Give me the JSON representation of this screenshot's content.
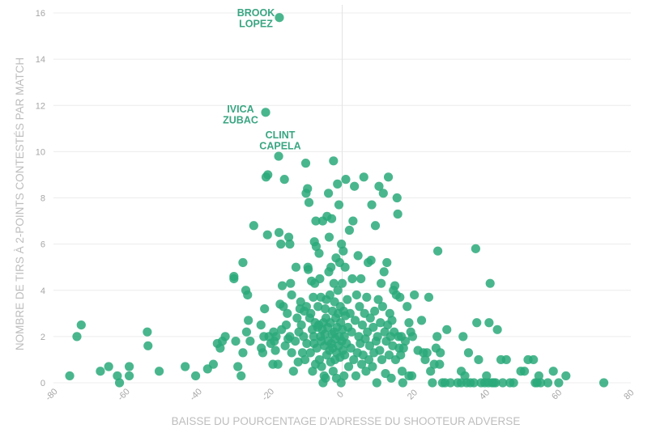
{
  "chart_data": {
    "type": "scatter",
    "xlabel": "BAISSE DU POURCENTAGE D'ADRESSE DU SHOOTEUR ADVERSE",
    "ylabel": "NOMBRE DE TIRS À 2-POINTS CONTESTÉS PAR MATCH",
    "xlim": [
      -80,
      80
    ],
    "ylim": [
      0,
      16
    ],
    "xticks": [
      -80,
      -60,
      -40,
      -20,
      0,
      20,
      40,
      60,
      80
    ],
    "yticks": [
      0,
      2,
      4,
      6,
      8,
      10,
      12,
      14,
      16
    ],
    "grid": true,
    "color": "#2aa97a",
    "annotations": [
      {
        "lines": [
          "BROOK",
          "LOPEZ"
        ],
        "x": -17.4,
        "y": 15.8
      },
      {
        "lines": [
          "IVICA",
          "ZUBAC"
        ],
        "x": -21.2,
        "y": 11.7
      },
      {
        "lines": [
          "CLINT",
          "CAPELA"
        ],
        "x": -17.6,
        "y": 9.8
      }
    ],
    "points": [
      [
        -75.5,
        0.3
      ],
      [
        -73.5,
        2.0
      ],
      [
        -72.3,
        2.5
      ],
      [
        -67.0,
        0.5
      ],
      [
        -64.7,
        0.7
      ],
      [
        -62.3,
        0.3
      ],
      [
        -61.7,
        0.0
      ],
      [
        -59.0,
        0.7
      ],
      [
        -59.0,
        0.3
      ],
      [
        -54.0,
        2.2
      ],
      [
        -53.8,
        1.6
      ],
      [
        -50.7,
        0.5
      ],
      [
        -43.5,
        0.7
      ],
      [
        -40.6,
        0.3
      ],
      [
        -37.3,
        0.6
      ],
      [
        -35.7,
        0.8
      ],
      [
        -34.6,
        1.7
      ],
      [
        -33.8,
        1.5
      ],
      [
        -33.2,
        1.8
      ],
      [
        -32.4,
        2.0
      ],
      [
        -30.0,
        4.6
      ],
      [
        -30.0,
        4.5
      ],
      [
        -29.5,
        1.8
      ],
      [
        -28.9,
        0.7
      ],
      [
        -28.0,
        0.3
      ],
      [
        -27.5,
        1.3
      ],
      [
        -27.5,
        5.2
      ],
      [
        -26.7,
        4.0
      ],
      [
        -26.5,
        2.2
      ],
      [
        -26.2,
        3.8
      ],
      [
        -26.0,
        2.7
      ],
      [
        -25.5,
        1.8
      ],
      [
        -24.5,
        6.8
      ],
      [
        -22.5,
        2.5
      ],
      [
        -22.4,
        1.5
      ],
      [
        -22.0,
        1.3
      ],
      [
        -21.7,
        2.0
      ],
      [
        -21.5,
        3.2
      ],
      [
        -21.2,
        11.7
      ],
      [
        -21.1,
        8.9
      ],
      [
        -20.7,
        6.4
      ],
      [
        -20.6,
        9.0
      ],
      [
        -20.3,
        2.0
      ],
      [
        -19.8,
        1.7
      ],
      [
        -19.2,
        0.8
      ],
      [
        -19.0,
        2.2
      ],
      [
        -18.8,
        1.8
      ],
      [
        -18.5,
        1.4
      ],
      [
        -18.3,
        2.0
      ],
      [
        -17.8,
        0.8
      ],
      [
        -17.6,
        9.8
      ],
      [
        -17.5,
        6.5
      ],
      [
        -17.4,
        15.8
      ],
      [
        -17.2,
        3.4
      ],
      [
        -17.0,
        6.0
      ],
      [
        -16.8,
        2.3
      ],
      [
        -16.6,
        4.2
      ],
      [
        -16.3,
        3.3
      ],
      [
        -16.0,
        8.8
      ],
      [
        -15.8,
        1.6
      ],
      [
        -15.5,
        2.5
      ],
      [
        -15.2,
        3.0
      ],
      [
        -15.0,
        1.9
      ],
      [
        -14.8,
        6.3
      ],
      [
        -14.5,
        6.0
      ],
      [
        -14.5,
        2.0
      ],
      [
        -14.3,
        4.3
      ],
      [
        -14.0,
        1.3
      ],
      [
        -14.0,
        3.8
      ],
      [
        -13.5,
        0.5
      ],
      [
        -13.0,
        1.8
      ],
      [
        -12.8,
        5.0
      ],
      [
        -12.5,
        2.8
      ],
      [
        -12.2,
        0.9
      ],
      [
        -12.0,
        2.2
      ],
      [
        -11.7,
        3.2
      ],
      [
        -11.5,
        3.5
      ],
      [
        -11.3,
        2.5
      ],
      [
        -11.0,
        1.3
      ],
      [
        -10.7,
        2.0
      ],
      [
        -10.5,
        3.1
      ],
      [
        -10.3,
        1.0
      ],
      [
        -10.1,
        9.5
      ],
      [
        -10.0,
        8.2
      ],
      [
        -9.9,
        3.3
      ],
      [
        -9.8,
        1.7
      ],
      [
        -9.6,
        8.4
      ],
      [
        -9.5,
        5.0
      ],
      [
        -9.4,
        4.9
      ],
      [
        -9.2,
        7.8
      ],
      [
        -9.0,
        2.8
      ],
      [
        -8.8,
        1.3
      ],
      [
        -8.7,
        3.0
      ],
      [
        -8.5,
        4.4
      ],
      [
        -8.3,
        2.3
      ],
      [
        -8.2,
        0.5
      ],
      [
        -8.0,
        3.7
      ],
      [
        -7.9,
        2.0
      ],
      [
        -7.8,
        1.7
      ],
      [
        -7.7,
        6.1
      ],
      [
        -7.6,
        4.3
      ],
      [
        -7.5,
        2.6
      ],
      [
        -7.4,
        0.8
      ],
      [
        -7.3,
        7.0
      ],
      [
        -7.2,
        5.9
      ],
      [
        -7.0,
        1.5
      ],
      [
        -6.8,
        2.4
      ],
      [
        -6.7,
        3.3
      ],
      [
        -6.5,
        2.5
      ],
      [
        -6.4,
        5.6
      ],
      [
        -6.3,
        1.0
      ],
      [
        -6.2,
        4.5
      ],
      [
        -6.0,
        2.0
      ],
      [
        -5.9,
        3.7
      ],
      [
        -5.8,
        1.8
      ],
      [
        -5.7,
        0.7
      ],
      [
        -5.5,
        2.3
      ],
      [
        -5.4,
        7.0
      ],
      [
        -5.3,
        0.0
      ],
      [
        -5.2,
        2.6
      ],
      [
        -5.0,
        0.3
      ],
      [
        -4.9,
        1.6
      ],
      [
        -4.8,
        2.1
      ],
      [
        -4.7,
        3.2
      ],
      [
        -4.6,
        0.2
      ],
      [
        -4.5,
        2.8
      ],
      [
        -4.4,
        3.6
      ],
      [
        -4.3,
        1.2
      ],
      [
        -4.2,
        7.2
      ],
      [
        -4.0,
        2.4
      ],
      [
        -3.9,
        1.8
      ],
      [
        -3.8,
        8.2
      ],
      [
        -3.7,
        4.8
      ],
      [
        -3.6,
        6.3
      ],
      [
        -3.5,
        1.4
      ],
      [
        -3.4,
        3.8
      ],
      [
        -3.3,
        2.6
      ],
      [
        -3.2,
        0.9
      ],
      [
        -3.1,
        5.0
      ],
      [
        -3.0,
        1.7
      ],
      [
        -2.9,
        7.1
      ],
      [
        -2.8,
        2.1
      ],
      [
        -2.7,
        3.1
      ],
      [
        -2.6,
        1.5
      ],
      [
        -2.5,
        0.5
      ],
      [
        -2.4,
        9.6
      ],
      [
        -2.3,
        4.3
      ],
      [
        -2.2,
        2.2
      ],
      [
        -2.1,
        3.5
      ],
      [
        -2.0,
        1.0
      ],
      [
        -1.9,
        1.9
      ],
      [
        -1.8,
        2.8
      ],
      [
        -1.7,
        5.4
      ],
      [
        -1.6,
        0.2
      ],
      [
        -1.5,
        1.3
      ],
      [
        -1.4,
        2.4
      ],
      [
        -1.3,
        8.6
      ],
      [
        -1.2,
        4.0
      ],
      [
        -1.1,
        3.0
      ],
      [
        -1.0,
        1.6
      ],
      [
        -0.9,
        7.7
      ],
      [
        -0.8,
        2.0
      ],
      [
        -0.7,
        5.2
      ],
      [
        -0.6,
        1.1
      ],
      [
        -0.5,
        3.3
      ],
      [
        -0.4,
        2.6
      ],
      [
        -0.3,
        0.0
      ],
      [
        -0.2,
        6.0
      ],
      [
        -0.1,
        1.8
      ],
      [
        0.0,
        4.3
      ],
      [
        0.1,
        2.3
      ],
      [
        0.2,
        1.4
      ],
      [
        0.3,
        5.7
      ],
      [
        0.4,
        3.1
      ],
      [
        0.5,
        0.3
      ],
      [
        0.6,
        2.0
      ],
      [
        0.7,
        1.2
      ],
      [
        0.8,
        5.0
      ],
      [
        0.9,
        2.9
      ],
      [
        1.0,
        8.8
      ],
      [
        1.2,
        1.7
      ],
      [
        1.4,
        3.6
      ],
      [
        1.6,
        2.4
      ],
      [
        1.8,
        0.7
      ],
      [
        2.0,
        6.6
      ],
      [
        2.2,
        3.0
      ],
      [
        2.4,
        1.5
      ],
      [
        2.6,
        2.2
      ],
      [
        2.8,
        4.5
      ],
      [
        3.0,
        7.0
      ],
      [
        3.2,
        1.0
      ],
      [
        3.4,
        8.5
      ],
      [
        3.6,
        2.7
      ],
      [
        3.8,
        0.3
      ],
      [
        4.0,
        3.8
      ],
      [
        4.2,
        1.3
      ],
      [
        4.4,
        5.5
      ],
      [
        4.6,
        2.0
      ],
      [
        4.8,
        3.3
      ],
      [
        5.0,
        1.7
      ],
      [
        5.2,
        4.5
      ],
      [
        5.4,
        0.8
      ],
      [
        5.6,
        2.5
      ],
      [
        5.8,
        1.2
      ],
      [
        6.0,
        8.9
      ],
      [
        6.2,
        3.0
      ],
      [
        6.4,
        1.9
      ],
      [
        6.6,
        0.5
      ],
      [
        6.8,
        3.7
      ],
      [
        7.0,
        2.2
      ],
      [
        7.2,
        5.2
      ],
      [
        7.4,
        1.0
      ],
      [
        7.6,
        1.6
      ],
      [
        7.8,
        2.8
      ],
      [
        8.0,
        5.3
      ],
      [
        8.2,
        7.7
      ],
      [
        8.4,
        0.7
      ],
      [
        8.6,
        2.4
      ],
      [
        8.8,
        1.3
      ],
      [
        9.0,
        3.1
      ],
      [
        9.2,
        6.8
      ],
      [
        9.4,
        1.8
      ],
      [
        9.6,
        0.0
      ],
      [
        9.8,
        2.0
      ],
      [
        10.0,
        3.6
      ],
      [
        10.2,
        8.5
      ],
      [
        10.4,
        1.4
      ],
      [
        10.6,
        2.6
      ],
      [
        10.8,
        4.3
      ],
      [
        11.0,
        1.0
      ],
      [
        11.2,
        3.3
      ],
      [
        11.4,
        8.2
      ],
      [
        11.6,
        4.8
      ],
      [
        11.8,
        2.2
      ],
      [
        12.0,
        0.4
      ],
      [
        12.2,
        1.8
      ],
      [
        12.4,
        5.2
      ],
      [
        12.6,
        2.5
      ],
      [
        12.8,
        8.9
      ],
      [
        13.0,
        1.2
      ],
      [
        13.2,
        3.0
      ],
      [
        13.4,
        2.0
      ],
      [
        13.6,
        0.2
      ],
      [
        13.8,
        2.7
      ],
      [
        14.0,
        1.6
      ],
      [
        14.2,
        4.0
      ],
      [
        14.4,
        2.2
      ],
      [
        14.6,
        4.2
      ],
      [
        14.8,
        1.0
      ],
      [
        15.0,
        3.8
      ],
      [
        15.2,
        8.0
      ],
      [
        15.4,
        7.3
      ],
      [
        15.6,
        2.0
      ],
      [
        15.8,
        1.5
      ],
      [
        16.0,
        3.7
      ],
      [
        16.2,
        1.2
      ],
      [
        16.4,
        2.0
      ],
      [
        16.6,
        0.5
      ],
      [
        16.8,
        0.0
      ],
      [
        17.0,
        1.5
      ],
      [
        17.5,
        1.8
      ],
      [
        18.0,
        3.3
      ],
      [
        18.5,
        0.3
      ],
      [
        18.5,
        2.6
      ],
      [
        19.0,
        2.2
      ],
      [
        19.3,
        0.3
      ],
      [
        19.5,
        2.0
      ],
      [
        20.0,
        3.8
      ],
      [
        21.0,
        1.4
      ],
      [
        22.0,
        2.7
      ],
      [
        22.5,
        1.3
      ],
      [
        23.0,
        1.0
      ],
      [
        23.5,
        1.3
      ],
      [
        24.0,
        3.7
      ],
      [
        24.5,
        0.5
      ],
      [
        25.0,
        0.0
      ],
      [
        25.5,
        0.8
      ],
      [
        26.0,
        1.5
      ],
      [
        26.3,
        2.0
      ],
      [
        26.5,
        5.7
      ],
      [
        27.0,
        0.8
      ],
      [
        27.2,
        1.3
      ],
      [
        27.8,
        0.0
      ],
      [
        28.5,
        0.0
      ],
      [
        29.0,
        2.3
      ],
      [
        30.0,
        0.0
      ],
      [
        32.0,
        0.0
      ],
      [
        33.0,
        0.0
      ],
      [
        33.0,
        0.5
      ],
      [
        33.5,
        2.0
      ],
      [
        34.0,
        0.3
      ],
      [
        34.5,
        0.0
      ],
      [
        35.0,
        1.3
      ],
      [
        35.5,
        0.0
      ],
      [
        36.5,
        0.0
      ],
      [
        37.0,
        5.8
      ],
      [
        37.3,
        2.6
      ],
      [
        37.8,
        1.0
      ],
      [
        38.5,
        0.0
      ],
      [
        39.5,
        0.0
      ],
      [
        40.0,
        0.3
      ],
      [
        40.5,
        0.0
      ],
      [
        41.0,
        4.3
      ],
      [
        40.7,
        2.6
      ],
      [
        41.5,
        0.0
      ],
      [
        42.0,
        0.0
      ],
      [
        42.5,
        0.0
      ],
      [
        43.0,
        2.3
      ],
      [
        44.0,
        1.0
      ],
      [
        44.5,
        0.0
      ],
      [
        45.5,
        1.0
      ],
      [
        46.5,
        0.0
      ],
      [
        47.5,
        0.0
      ],
      [
        49.5,
        0.5
      ],
      [
        50.5,
        0.5
      ],
      [
        51.5,
        1.0
      ],
      [
        53.0,
        1.0
      ],
      [
        53.5,
        0.0
      ],
      [
        54.0,
        0.0
      ],
      [
        54.5,
        0.3
      ],
      [
        55.0,
        0.0
      ],
      [
        57.0,
        0.0
      ],
      [
        58.5,
        0.5
      ],
      [
        60.0,
        0.0
      ],
      [
        62.0,
        0.3
      ],
      [
        72.5,
        0.0
      ]
    ]
  }
}
